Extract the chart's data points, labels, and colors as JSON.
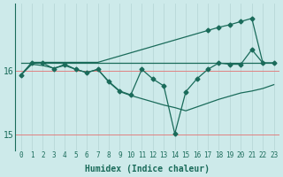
{
  "xlabel": "Humidex (Indice chaleur)",
  "background_color": "#cdeaea",
  "grid_color_v": "#b8d8d8",
  "grid_color_h": "#e08080",
  "line_color": "#1a6b5a",
  "x": [
    0,
    1,
    2,
    3,
    4,
    5,
    6,
    7,
    8,
    9,
    10,
    11,
    12,
    13,
    14,
    15,
    16,
    17,
    18,
    19,
    20,
    21,
    22,
    23
  ],
  "y_zigzag": [
    15.93,
    16.12,
    16.12,
    16.03,
    16.1,
    16.02,
    15.97,
    16.02,
    15.83,
    15.68,
    15.62,
    16.02,
    15.87,
    15.76,
    15.01,
    15.67,
    15.87,
    16.02,
    16.12,
    16.1,
    16.1,
    16.33,
    16.12,
    16.12
  ],
  "y_upper": [
    15.93,
    16.13,
    16.13,
    16.13,
    16.13,
    16.13,
    16.13,
    16.13,
    16.18,
    16.23,
    16.28,
    16.33,
    16.38,
    16.43,
    16.48,
    16.53,
    16.58,
    16.63,
    16.68,
    16.72,
    16.77,
    16.82,
    16.12,
    16.12
  ],
  "y_flat": [
    16.12,
    16.12,
    16.12,
    16.12,
    16.12,
    16.12,
    16.12,
    16.12,
    16.12,
    16.12,
    16.12,
    16.12,
    16.12,
    16.12,
    16.12,
    16.12,
    16.12,
    16.12,
    16.12,
    16.12,
    16.12,
    16.12,
    16.12,
    16.12
  ],
  "y_descend": [
    15.93,
    16.1,
    16.08,
    16.04,
    16.08,
    16.02,
    15.97,
    16.02,
    15.82,
    15.67,
    15.61,
    15.56,
    15.51,
    15.46,
    15.42,
    15.37,
    15.43,
    15.49,
    15.55,
    15.6,
    15.65,
    15.68,
    15.72,
    15.78
  ],
  "ylim": [
    14.75,
    17.05
  ],
  "yticks": [
    15,
    16
  ],
  "xlim": [
    -0.5,
    23.5
  ]
}
